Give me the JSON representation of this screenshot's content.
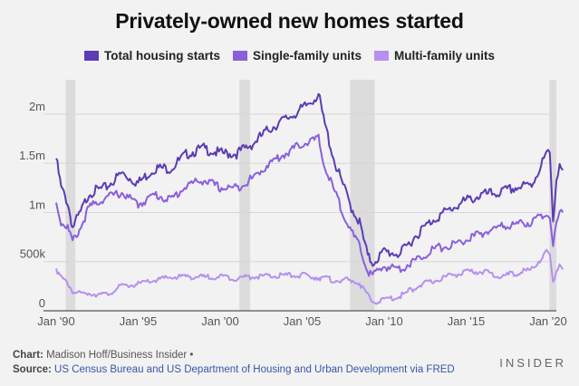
{
  "chart_data": {
    "type": "line",
    "title": "Privately-owned new homes started",
    "xlim": [
      1990,
      2020.5
    ],
    "ylim": [
      0,
      2350
    ],
    "y_unit": "thousands of units (annual rate)",
    "x_tick_values": [
      1990,
      1995,
      2000,
      2005,
      2010,
      2015,
      2020
    ],
    "x_tick_labels": [
      "Jan '90",
      "Jan '95",
      "Jan '00",
      "Jan '05",
      "Jan '10",
      "Jan '15",
      "Jan '20"
    ],
    "y_tick_values": [
      0,
      500,
      1000,
      1500,
      2000
    ],
    "y_tick_labels": [
      "0",
      "500k",
      "1m",
      "1.5m",
      "2m"
    ],
    "grid": "horizontal",
    "legend_position": "top",
    "recessions": [
      [
        1990.58,
        1991.17
      ],
      [
        2001.17,
        2001.83
      ],
      [
        2007.92,
        2009.42
      ],
      [
        2020.08,
        2020.5
      ]
    ],
    "series": [
      {
        "name": "Total housing starts",
        "color": "#5b3cb4",
        "points": [
          [
            1990,
            1550
          ],
          [
            1990.3,
            1250
          ],
          [
            1990.7,
            1100
          ],
          [
            1991,
            850
          ],
          [
            1991.5,
            1000
          ],
          [
            1992,
            1200
          ],
          [
            1993,
            1250
          ],
          [
            1994,
            1400
          ],
          [
            1995,
            1300
          ],
          [
            1996,
            1450
          ],
          [
            1997,
            1450
          ],
          [
            1998,
            1600
          ],
          [
            1999,
            1650
          ],
          [
            2000,
            1600
          ],
          [
            2001,
            1600
          ],
          [
            2002,
            1700
          ],
          [
            2003,
            1850
          ],
          [
            2004,
            1950
          ],
          [
            2005,
            2050
          ],
          [
            2006,
            2200
          ],
          [
            2006.3,
            1950
          ],
          [
            2007,
            1500
          ],
          [
            2008,
            1050
          ],
          [
            2008.5,
            900
          ],
          [
            2009,
            550
          ],
          [
            2009.3,
            490
          ],
          [
            2010,
            600
          ],
          [
            2011,
            580
          ],
          [
            2012,
            780
          ],
          [
            2013,
            930
          ],
          [
            2014,
            1030
          ],
          [
            2015,
            1120
          ],
          [
            2016,
            1180
          ],
          [
            2017,
            1200
          ],
          [
            2018,
            1250
          ],
          [
            2019,
            1280
          ],
          [
            2019.9,
            1600
          ],
          [
            2020.1,
            1580
          ],
          [
            2020.3,
            920
          ],
          [
            2020.5,
            1350
          ],
          [
            2020.7,
            1500
          ],
          [
            2020.9,
            1430
          ]
        ]
      },
      {
        "name": "Single-family units",
        "color": "#8a5fdc",
        "points": [
          [
            1990,
            1100
          ],
          [
            1990.3,
            900
          ],
          [
            1990.7,
            850
          ],
          [
            1991,
            700
          ],
          [
            1991.5,
            850
          ],
          [
            1992,
            1050
          ],
          [
            1993,
            1150
          ],
          [
            1994,
            1200
          ],
          [
            1995,
            1080
          ],
          [
            1996,
            1180
          ],
          [
            1997,
            1130
          ],
          [
            1998,
            1280
          ],
          [
            1999,
            1330
          ],
          [
            2000,
            1250
          ],
          [
            2001,
            1250
          ],
          [
            2002,
            1350
          ],
          [
            2003,
            1500
          ],
          [
            2004,
            1600
          ],
          [
            2005,
            1700
          ],
          [
            2006,
            1750
          ],
          [
            2006.3,
            1500
          ],
          [
            2007,
            1200
          ],
          [
            2008,
            800
          ],
          [
            2008.5,
            650
          ],
          [
            2009,
            400
          ],
          [
            2009.3,
            360
          ],
          [
            2010,
            450
          ],
          [
            2011,
            430
          ],
          [
            2012,
            520
          ],
          [
            2013,
            630
          ],
          [
            2014,
            660
          ],
          [
            2015,
            720
          ],
          [
            2016,
            790
          ],
          [
            2017,
            850
          ],
          [
            2018,
            880
          ],
          [
            2019,
            900
          ],
          [
            2019.9,
            1000
          ],
          [
            2020.1,
            950
          ],
          [
            2020.3,
            700
          ],
          [
            2020.5,
            850
          ],
          [
            2020.7,
            980
          ],
          [
            2020.9,
            1000
          ]
        ]
      },
      {
        "name": "Multi-family units",
        "color": "#b690ee",
        "points": [
          [
            1990,
            430
          ],
          [
            1990.3,
            330
          ],
          [
            1990.7,
            280
          ],
          [
            1991,
            200
          ],
          [
            1991.5,
            170
          ],
          [
            1992,
            180
          ],
          [
            1993,
            160
          ],
          [
            1994,
            250
          ],
          [
            1995,
            270
          ],
          [
            1996,
            310
          ],
          [
            1997,
            340
          ],
          [
            1998,
            350
          ],
          [
            1999,
            340
          ],
          [
            2000,
            350
          ],
          [
            2001,
            330
          ],
          [
            2002,
            350
          ],
          [
            2003,
            350
          ],
          [
            2004,
            360
          ],
          [
            2005,
            360
          ],
          [
            2006,
            340
          ],
          [
            2007,
            310
          ],
          [
            2008,
            310
          ],
          [
            2008.5,
            280
          ],
          [
            2009,
            150
          ],
          [
            2009.3,
            90
          ],
          [
            2010,
            110
          ],
          [
            2011,
            150
          ],
          [
            2012,
            250
          ],
          [
            2013,
            300
          ],
          [
            2014,
            360
          ],
          [
            2015,
            390
          ],
          [
            2016,
            400
          ],
          [
            2017,
            350
          ],
          [
            2018,
            380
          ],
          [
            2019,
            420
          ],
          [
            2019.9,
            600
          ],
          [
            2020.1,
            550
          ],
          [
            2020.3,
            270
          ],
          [
            2020.5,
            400
          ],
          [
            2020.7,
            480
          ],
          [
            2020.9,
            420
          ]
        ]
      }
    ]
  },
  "footer": {
    "chart_label": "Chart:",
    "chart_credit": "Madison Hoff/Business Insider •",
    "source_label": "Source:",
    "source_text": "US Census Bureau and US Department of Housing and Urban Development via FRED"
  },
  "brand": "INSIDER"
}
